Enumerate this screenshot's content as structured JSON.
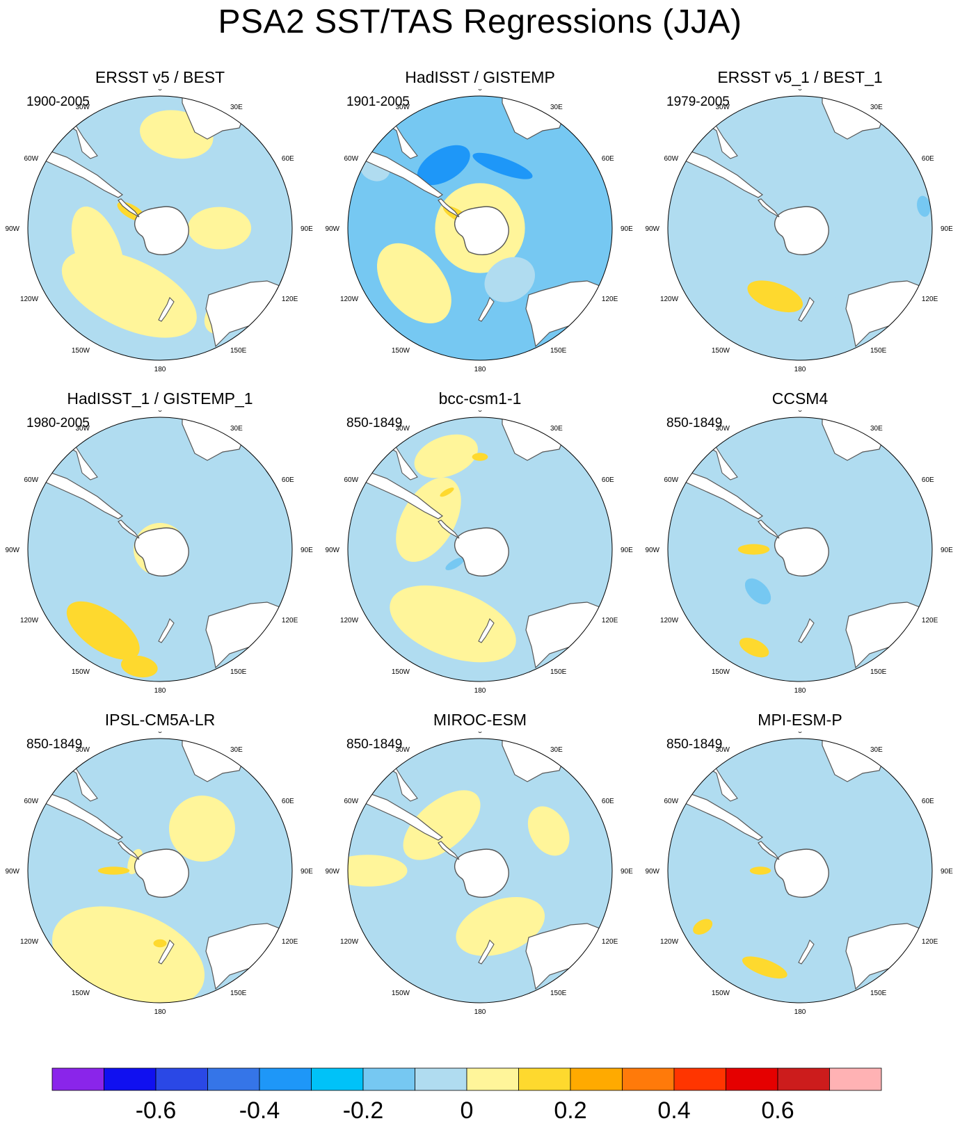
{
  "title": "PSA2 SST/TAS Regressions (JJA)",
  "lon_labels": [
    "0",
    "30E",
    "60E",
    "90E",
    "120E",
    "150E",
    "180",
    "150W",
    "120W",
    "90W",
    "60W",
    "30W"
  ],
  "colors": {
    "land": "#ffffff",
    "coast": "#555555",
    "neutral_negative": "#b0dcf0",
    "neutral_positive": "#fff59a"
  },
  "colorbar": {
    "colors": [
      "#8a25ea",
      "#1010f0",
      "#2a48e6",
      "#3575e8",
      "#1e97f8",
      "#00c2f8",
      "#76c8f2",
      "#b0dcf0",
      "#fff59a",
      "#fed92e",
      "#ffaa00",
      "#ff7a0a",
      "#ff3500",
      "#e50000",
      "#cc1c1c",
      "#ffb2b4"
    ],
    "tick_values": [
      "-0.6",
      "-0.4",
      "-0.2",
      "0",
      "0.2",
      "0.4",
      "0.6"
    ],
    "boundaries": [
      -0.7,
      -0.6,
      -0.5,
      -0.4,
      -0.3,
      -0.2,
      -0.1,
      0,
      0.1,
      0.2,
      0.3,
      0.4,
      0.5,
      0.6,
      0.7
    ]
  },
  "panels": [
    {
      "id": "ersst-best",
      "title": "ERSST v5 / BEST",
      "period": "1900-2005",
      "blobs": [
        {
          "lon": 205,
          "r": 0.55,
          "rx": 0.55,
          "ry": 0.26,
          "level": 0.05
        },
        {
          "lon": 90,
          "r": 0.45,
          "rx": 0.16,
          "ry": 0.24,
          "level": 0.05
        },
        {
          "lon": 10,
          "r": 0.72,
          "rx": 0.28,
          "ry": 0.18,
          "level": 0.05
        },
        {
          "lon": 250,
          "r": 0.5,
          "rx": 0.35,
          "ry": 0.17,
          "level": 0.05
        },
        {
          "lon": 140,
          "r": 0.82,
          "rx": 0.22,
          "ry": 0.14,
          "level": 0.05
        },
        {
          "lon": 300,
          "r": 0.25,
          "rx": 0.05,
          "ry": 0.12,
          "level": 0.15
        }
      ]
    },
    {
      "id": "hadisst-gistemp",
      "title": "HadISST / GISTEMP",
      "period": "1901-2005",
      "background": "#76c8f2",
      "blobs": [
        {
          "lon": 0,
          "r": 0.0,
          "rx": 0.34,
          "ry": 0.34,
          "level": 0.05
        },
        {
          "lon": 230,
          "r": 0.65,
          "rx": 0.35,
          "ry": 0.22,
          "level": 0.05
        },
        {
          "lon": 330,
          "r": 0.55,
          "rx": 0.22,
          "ry": 0.12,
          "level": -0.35
        },
        {
          "lon": 20,
          "r": 0.5,
          "rx": 0.24,
          "ry": 0.06,
          "level": -0.35
        },
        {
          "lon": 150,
          "r": 0.45,
          "rx": 0.2,
          "ry": 0.16,
          "level": -0.05
        },
        {
          "lon": 300,
          "r": 0.2,
          "rx": 0.04,
          "ry": 0.12,
          "level": 0.15
        },
        {
          "lon": 300,
          "r": 0.92,
          "rx": 0.1,
          "ry": 0.12,
          "level": -0.05
        }
      ]
    },
    {
      "id": "ersst-best-1",
      "title": "ERSST v5_1 / BEST_1",
      "period": "1979-2005",
      "blobs": [
        {
          "lon": 180,
          "r": 0.35,
          "rx": 0.55,
          "ry": 0.2,
          "level": -0.05
        },
        {
          "lon": 0,
          "r": 0.75,
          "rx": 0.45,
          "ry": 0.1,
          "level": -0.05
        },
        {
          "lon": 200,
          "r": 0.55,
          "rx": 0.22,
          "ry": 0.1,
          "level": 0.15
        },
        {
          "lon": 45,
          "r": 0.7,
          "rx": 0.12,
          "ry": 0.08,
          "level": -0.05
        },
        {
          "lon": 80,
          "r": 0.95,
          "rx": 0.08,
          "ry": 0.05,
          "level": -0.2
        },
        {
          "lon": 300,
          "r": 0.05,
          "rx": 0.14,
          "ry": 0.08,
          "level": -0.05
        }
      ]
    },
    {
      "id": "hadisst-gistemp-1",
      "title": "HadISST_1 / GISTEMP_1",
      "period": "1980-2005",
      "blobs": [
        {
          "lon": 0,
          "r": 0.38,
          "rx": 0.5,
          "ry": 0.5,
          "level": -0.05
        },
        {
          "lon": 0,
          "r": 0.0,
          "rx": 0.2,
          "ry": 0.2,
          "level": 0.05
        },
        {
          "lon": 215,
          "r": 0.75,
          "rx": 0.32,
          "ry": 0.15,
          "level": 0.15
        },
        {
          "lon": 190,
          "r": 0.9,
          "rx": 0.14,
          "ry": 0.08,
          "level": 0.15
        },
        {
          "lon": 330,
          "r": 0.7,
          "rx": 0.15,
          "ry": 0.1,
          "level": -0.05
        }
      ]
    },
    {
      "id": "bcc-csm1-1",
      "title": "bcc-csm1-1",
      "period": "850-1849",
      "blobs": [
        {
          "lon": 300,
          "r": 0.45,
          "rx": 0.35,
          "ry": 0.2,
          "level": 0.05
        },
        {
          "lon": 200,
          "r": 0.6,
          "rx": 0.5,
          "ry": 0.25,
          "level": 0.05
        },
        {
          "lon": 340,
          "r": 0.75,
          "rx": 0.25,
          "ry": 0.15,
          "level": 0.05
        },
        {
          "lon": 0,
          "r": 0.7,
          "rx": 0.06,
          "ry": 0.03,
          "level": 0.15
        },
        {
          "lon": 330,
          "r": 0.5,
          "rx": 0.06,
          "ry": 0.02,
          "level": 0.15
        },
        {
          "lon": 240,
          "r": 0.22,
          "rx": 0.03,
          "ry": 0.08,
          "level": -0.15
        }
      ]
    },
    {
      "id": "ccsm4",
      "title": "CCSM4",
      "period": "850-1849",
      "blobs": [
        {
          "lon": 230,
          "r": 0.45,
          "rx": 0.3,
          "ry": 0.15,
          "level": -0.05
        },
        {
          "lon": 225,
          "r": 0.45,
          "rx": 0.12,
          "ry": 0.07,
          "level": -0.2
        },
        {
          "lon": 20,
          "r": 0.55,
          "rx": 0.4,
          "ry": 0.2,
          "level": -0.05
        },
        {
          "lon": 270,
          "r": 0.35,
          "rx": 0.04,
          "ry": 0.12,
          "level": 0.15
        },
        {
          "lon": 205,
          "r": 0.82,
          "rx": 0.12,
          "ry": 0.06,
          "level": 0.15
        }
      ]
    },
    {
      "id": "ipsl-cm5a-lr",
      "title": "IPSL-CM5A-LR",
      "period": "850-1849",
      "blobs": [
        {
          "lon": 200,
          "r": 0.7,
          "rx": 0.6,
          "ry": 0.35,
          "level": 0.05
        },
        {
          "lon": 45,
          "r": 0.45,
          "rx": 0.25,
          "ry": 0.25,
          "level": 0.05
        },
        {
          "lon": 290,
          "r": 0.2,
          "rx": 0.1,
          "ry": 0.05,
          "level": 0.05
        },
        {
          "lon": 270,
          "r": 0.35,
          "rx": 0.03,
          "ry": 0.12,
          "level": 0.15
        },
        {
          "lon": 180,
          "r": 0.55,
          "rx": 0.05,
          "ry": 0.03,
          "level": 0.15
        }
      ]
    },
    {
      "id": "miroc-esm",
      "title": "MIROC-ESM",
      "period": "850-1849",
      "blobs": [
        {
          "lon": 320,
          "r": 0.45,
          "rx": 0.35,
          "ry": 0.18,
          "level": 0.05
        },
        {
          "lon": 160,
          "r": 0.45,
          "rx": 0.35,
          "ry": 0.2,
          "level": 0.05
        },
        {
          "lon": 60,
          "r": 0.6,
          "rx": 0.2,
          "ry": 0.14,
          "level": 0.05
        },
        {
          "lon": 270,
          "r": 0.85,
          "rx": 0.12,
          "ry": 0.3,
          "level": 0.05
        }
      ]
    },
    {
      "id": "mpi-esm-p",
      "title": "MPI-ESM-P",
      "period": "850-1849",
      "blobs": [
        {
          "lon": 220,
          "r": 0.4,
          "rx": 0.25,
          "ry": 0.12,
          "level": -0.05
        },
        {
          "lon": 90,
          "r": 0.4,
          "rx": 0.18,
          "ry": 0.15,
          "level": -0.05
        },
        {
          "lon": 200,
          "r": 0.78,
          "rx": 0.18,
          "ry": 0.06,
          "level": 0.15
        },
        {
          "lon": 240,
          "r": 0.85,
          "rx": 0.05,
          "ry": 0.08,
          "level": 0.15
        },
        {
          "lon": 270,
          "r": 0.3,
          "rx": 0.03,
          "ry": 0.08,
          "level": 0.15
        }
      ]
    }
  ]
}
